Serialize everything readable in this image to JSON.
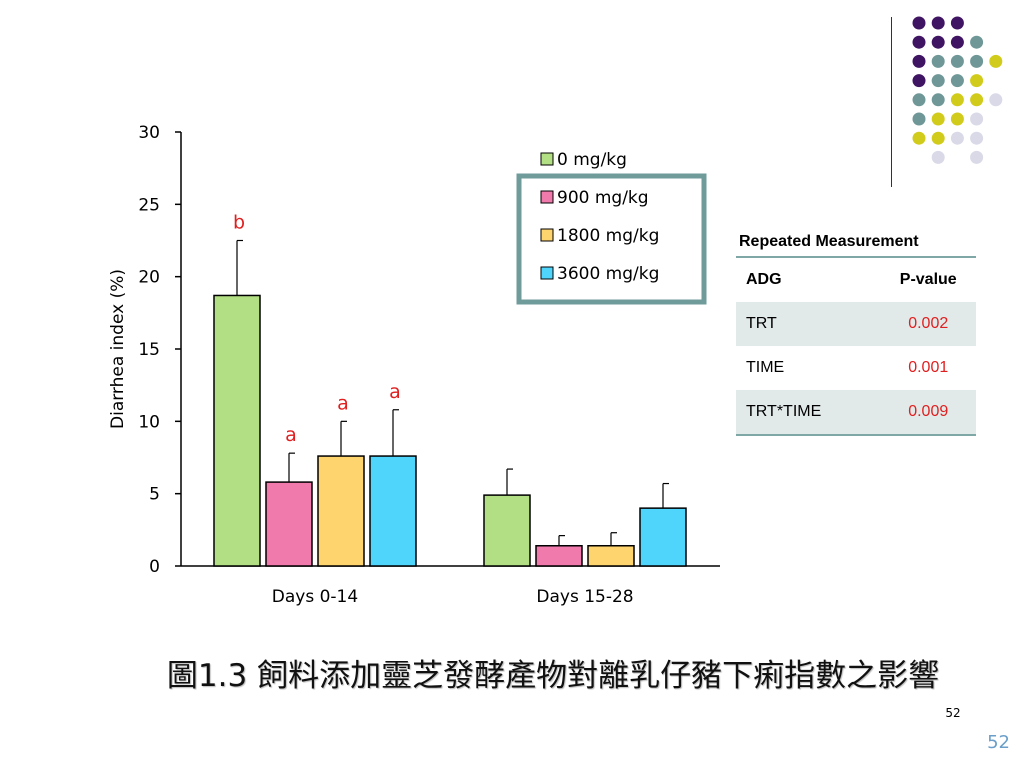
{
  "chart_data": {
    "type": "bar",
    "categories": [
      "Days 0-14",
      "Days 15-28"
    ],
    "ylabel": "Diarrhea index (%)",
    "ylim": [
      0,
      30
    ],
    "yticks": [
      0,
      5,
      10,
      15,
      20,
      25,
      30
    ],
    "series": [
      {
        "name": "0 mg/kg",
        "color": "#b3df84",
        "values": [
          18.7,
          4.9
        ],
        "errors": [
          3.8,
          1.8
        ],
        "labels": [
          "b",
          ""
        ]
      },
      {
        "name": "900 mg/kg",
        "color": "#f07aac",
        "values": [
          5.8,
          1.4
        ],
        "errors": [
          2.0,
          0.7
        ],
        "labels": [
          "a",
          ""
        ]
      },
      {
        "name": "1800 mg/kg",
        "color": "#fed46e",
        "values": [
          7.6,
          1.4
        ],
        "errors": [
          2.4,
          0.9
        ],
        "labels": [
          "a",
          ""
        ]
      },
      {
        "name": "3600 mg/kg",
        "color": "#4fd4fb",
        "values": [
          7.6,
          4.0
        ],
        "errors": [
          3.2,
          1.7
        ],
        "labels": [
          "a",
          ""
        ]
      }
    ],
    "legend_placement": "top-right",
    "grid": false
  },
  "stats_table": {
    "title": "Repeated Measurement",
    "header": [
      "ADG",
      "P-value"
    ],
    "rows": [
      {
        "label": "TRT",
        "value": "0.002"
      },
      {
        "label": "TIME",
        "value": "0.001"
      },
      {
        "label": "TRT*TIME",
        "value": "0.009"
      }
    ]
  },
  "caption": "圖1.3 飼料添加靈芝發酵產物對離乳仔豬下痢指數之影響",
  "page_number_small": "52",
  "page_number": "52",
  "colors": {
    "dark_purple": "#3f1463",
    "teal": "#6f9797",
    "olive": "#d1cc1b",
    "lavender": "#d9d9e8",
    "accent_red": "#e02020",
    "legend_border": "#6f9b9b"
  }
}
